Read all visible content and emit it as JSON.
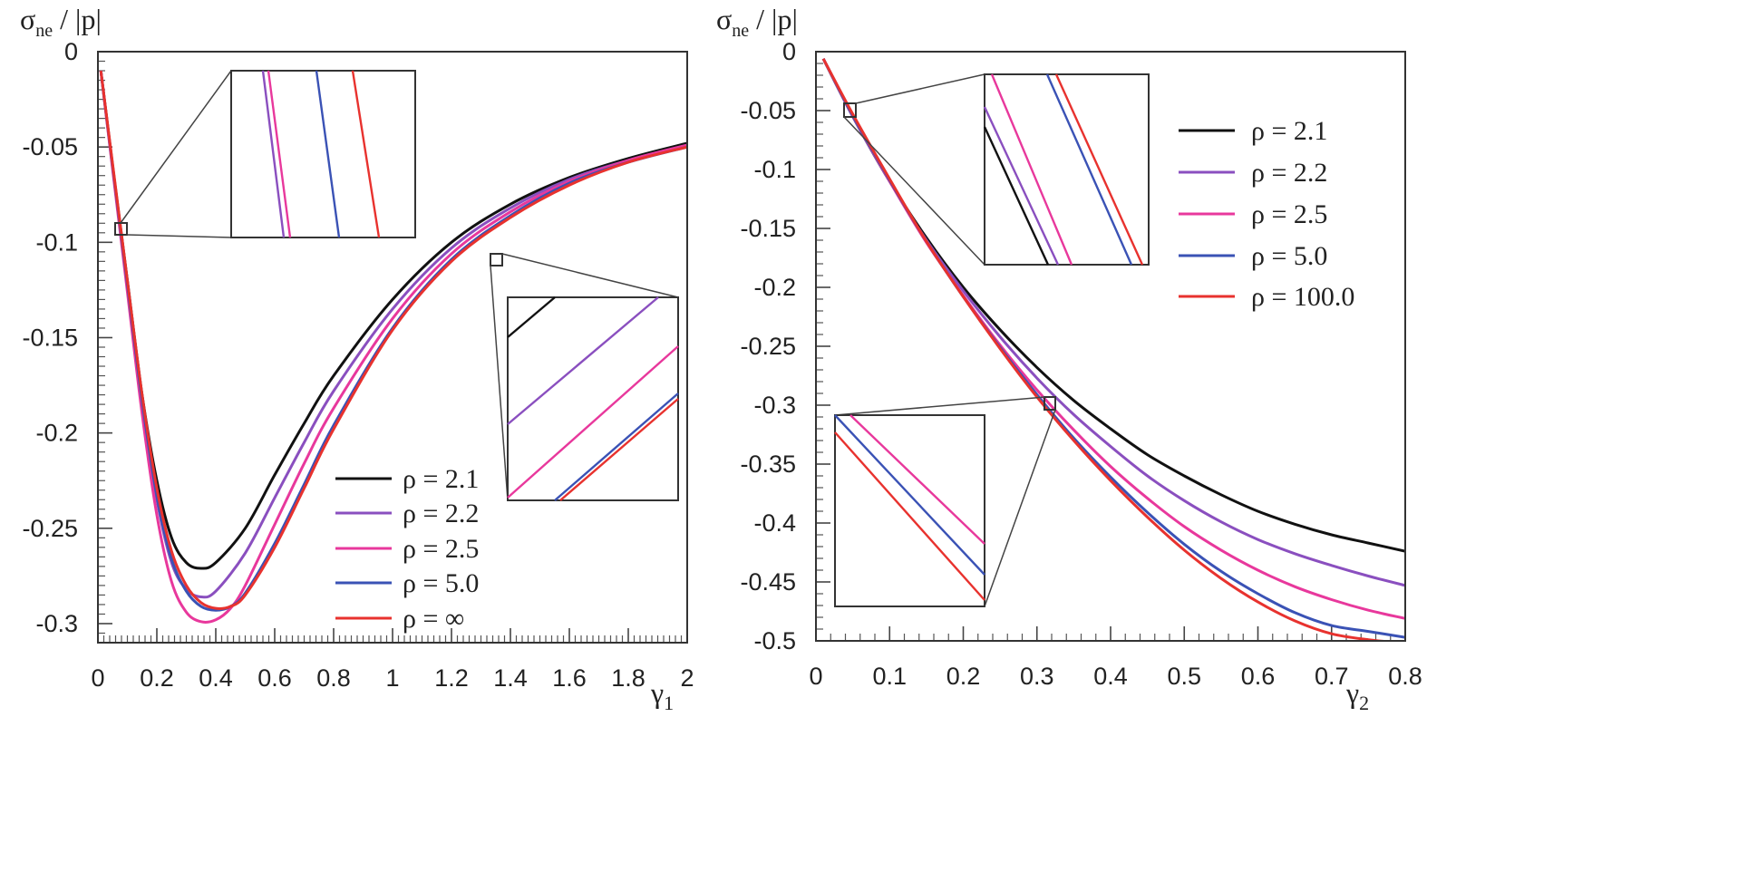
{
  "chart_data": [
    {
      "type": "line",
      "ylabel_main": "σ",
      "ylabel_sub": "ne",
      "ylabel_rest": " / |p|",
      "xlabel_main": "γ",
      "xlabel_sub": "1",
      "xlim": [
        0,
        2
      ],
      "ylim": [
        -0.31,
        0
      ],
      "x_ticks": [
        0,
        0.2,
        0.4,
        0.6,
        0.8,
        1,
        1.2,
        1.4,
        1.6,
        1.8,
        2
      ],
      "x_tick_labels": [
        "0",
        "0.2",
        "0.4",
        "0.6",
        "0.8",
        "1",
        "1.2",
        "1.4",
        "1.6",
        "1.8",
        "2"
      ],
      "y_ticks": [
        0,
        -0.05,
        -0.1,
        -0.15,
        -0.2,
        -0.25,
        -0.3
      ],
      "y_tick_labels": [
        "0",
        "-0.05",
        "-0.1",
        "-0.15",
        "-0.2",
        "-0.25",
        "-0.3"
      ],
      "legend": {
        "position": "lower-right",
        "entries": [
          {
            "label": "ρ = 2.1",
            "color": "#111111"
          },
          {
            "label": "ρ = 2.2",
            "color": "#8a4fbf"
          },
          {
            "label": "ρ = 2.5",
            "color": "#e8389c"
          },
          {
            "label": "ρ = 5.0",
            "color": "#3a52b5"
          },
          {
            "label": "ρ = ∞",
            "color": "#e8322e"
          }
        ]
      },
      "series": [
        {
          "name": "ρ = 2.1",
          "color": "#111111",
          "x": [
            0.01,
            0.05,
            0.1,
            0.15,
            0.2,
            0.25,
            0.3,
            0.35,
            0.4,
            0.5,
            0.6,
            0.7,
            0.8,
            1.0,
            1.2,
            1.4,
            1.6,
            1.8,
            2.0
          ],
          "y": [
            -0.01,
            -0.06,
            -0.12,
            -0.18,
            -0.225,
            -0.255,
            -0.268,
            -0.271,
            -0.268,
            -0.25,
            -0.222,
            -0.195,
            -0.17,
            -0.13,
            -0.1,
            -0.08,
            -0.066,
            -0.056,
            -0.048
          ]
        },
        {
          "name": "ρ = 2.2",
          "color": "#8a4fbf",
          "x": [
            0.01,
            0.05,
            0.1,
            0.15,
            0.2,
            0.25,
            0.3,
            0.35,
            0.4,
            0.5,
            0.6,
            0.7,
            0.8,
            1.0,
            1.2,
            1.4,
            1.6,
            1.8,
            2.0
          ],
          "y": [
            -0.01,
            -0.061,
            -0.123,
            -0.186,
            -0.235,
            -0.268,
            -0.282,
            -0.286,
            -0.283,
            -0.263,
            -0.234,
            -0.205,
            -0.178,
            -0.135,
            -0.103,
            -0.082,
            -0.067,
            -0.057,
            -0.049
          ]
        },
        {
          "name": "ρ = 2.5",
          "color": "#e8389c",
          "x": [
            0.01,
            0.05,
            0.1,
            0.15,
            0.2,
            0.25,
            0.3,
            0.35,
            0.4,
            0.45,
            0.5,
            0.6,
            0.7,
            0.8,
            1.0,
            1.2,
            1.4,
            1.6,
            1.8,
            2.0
          ],
          "y": [
            -0.01,
            -0.062,
            -0.126,
            -0.19,
            -0.243,
            -0.278,
            -0.294,
            -0.299,
            -0.298,
            -0.292,
            -0.28,
            -0.248,
            -0.216,
            -0.187,
            -0.14,
            -0.106,
            -0.084,
            -0.068,
            -0.057,
            -0.049
          ]
        },
        {
          "name": "ρ = 5.0",
          "color": "#3a52b5",
          "x": [
            0.01,
            0.05,
            0.1,
            0.15,
            0.2,
            0.25,
            0.3,
            0.35,
            0.4,
            0.45,
            0.5,
            0.6,
            0.7,
            0.8,
            1.0,
            1.2,
            1.4,
            1.6,
            1.8,
            2.0
          ],
          "y": [
            -0.01,
            -0.06,
            -0.122,
            -0.183,
            -0.233,
            -0.266,
            -0.283,
            -0.291,
            -0.293,
            -0.291,
            -0.284,
            -0.258,
            -0.227,
            -0.196,
            -0.145,
            -0.109,
            -0.086,
            -0.069,
            -0.058,
            -0.05
          ]
        },
        {
          "name": "ρ = ∞",
          "color": "#e8322e",
          "x": [
            0.01,
            0.05,
            0.1,
            0.15,
            0.2,
            0.25,
            0.3,
            0.35,
            0.4,
            0.45,
            0.5,
            0.6,
            0.7,
            0.8,
            1.0,
            1.2,
            1.4,
            1.6,
            1.8,
            2.0
          ],
          "y": [
            -0.01,
            -0.059,
            -0.12,
            -0.18,
            -0.229,
            -0.262,
            -0.28,
            -0.289,
            -0.292,
            -0.291,
            -0.285,
            -0.26,
            -0.229,
            -0.198,
            -0.146,
            -0.11,
            -0.087,
            -0.07,
            -0.058,
            -0.05
          ]
        }
      ],
      "insets": [
        {
          "type": "zoom",
          "source_x": [
            0.065,
            0.09
          ],
          "source_y": [
            -0.098,
            -0.088
          ],
          "contents": [
            "ρ = 2.2",
            "ρ = 2.5",
            "ρ = 5.0",
            "ρ = ∞"
          ]
        },
        {
          "type": "zoom",
          "source_x": [
            1.33,
            1.38
          ],
          "source_y": [
            -0.115,
            -0.105
          ],
          "contents": [
            "ρ = 2.1",
            "ρ = 2.2",
            "ρ = 2.5",
            "ρ = 5.0",
            "ρ = ∞"
          ]
        }
      ]
    },
    {
      "type": "line",
      "ylabel_main": "σ",
      "ylabel_sub": "ne",
      "ylabel_rest": " / |p|",
      "xlabel_main": "γ",
      "xlabel_sub": "2",
      "xlim": [
        0,
        0.8
      ],
      "ylim": [
        -0.5,
        0
      ],
      "x_ticks": [
        0,
        0.1,
        0.2,
        0.3,
        0.4,
        0.5,
        0.6,
        0.7,
        0.8
      ],
      "x_tick_labels": [
        "0",
        "0.1",
        "0.2",
        "0.3",
        "0.4",
        "0.5",
        "0.6",
        "0.7",
        "0.8"
      ],
      "y_ticks": [
        0,
        -0.05,
        -0.1,
        -0.15,
        -0.2,
        -0.25,
        -0.3,
        -0.35,
        -0.4,
        -0.45,
        -0.5
      ],
      "y_tick_labels": [
        "0",
        "-0.05",
        "-0.1",
        "-0.15",
        "-0.2",
        "-0.25",
        "-0.3",
        "-0.35",
        "-0.4",
        "-0.45",
        "-0.5"
      ],
      "legend": {
        "position": "upper-right",
        "entries": [
          {
            "label": "ρ = 2.1",
            "color": "#111111"
          },
          {
            "label": "ρ = 2.2",
            "color": "#8a4fbf"
          },
          {
            "label": "ρ = 2.5",
            "color": "#e8389c"
          },
          {
            "label": "ρ = 5.0",
            "color": "#3a52b5"
          },
          {
            "label": "ρ = 100.0",
            "color": "#e8322e"
          }
        ]
      },
      "series": [
        {
          "name": "ρ = 2.1",
          "color": "#111111",
          "x": [
            0.01,
            0.05,
            0.1,
            0.15,
            0.2,
            0.25,
            0.3,
            0.35,
            0.4,
            0.45,
            0.5,
            0.55,
            0.6,
            0.65,
            0.7,
            0.75,
            0.8
          ],
          "y": [
            -0.006,
            -0.055,
            -0.11,
            -0.158,
            -0.2,
            -0.236,
            -0.268,
            -0.296,
            -0.32,
            -0.342,
            -0.36,
            -0.376,
            -0.39,
            -0.401,
            -0.41,
            -0.417,
            -0.424
          ]
        },
        {
          "name": "ρ = 2.2",
          "color": "#8a4fbf",
          "x": [
            0.01,
            0.05,
            0.1,
            0.15,
            0.2,
            0.25,
            0.3,
            0.35,
            0.4,
            0.45,
            0.5,
            0.55,
            0.6,
            0.65,
            0.7,
            0.75,
            0.8
          ],
          "y": [
            -0.006,
            -0.055,
            -0.11,
            -0.16,
            -0.203,
            -0.242,
            -0.277,
            -0.308,
            -0.335,
            -0.36,
            -0.381,
            -0.399,
            -0.414,
            -0.426,
            -0.436,
            -0.445,
            -0.453
          ]
        },
        {
          "name": "ρ = 2.5",
          "color": "#e8389c",
          "x": [
            0.01,
            0.05,
            0.1,
            0.15,
            0.2,
            0.25,
            0.3,
            0.35,
            0.4,
            0.45,
            0.5,
            0.55,
            0.6,
            0.65,
            0.7,
            0.75,
            0.8
          ],
          "y": [
            -0.006,
            -0.054,
            -0.11,
            -0.162,
            -0.207,
            -0.249,
            -0.287,
            -0.321,
            -0.352,
            -0.379,
            -0.403,
            -0.423,
            -0.44,
            -0.454,
            -0.465,
            -0.474,
            -0.481
          ]
        },
        {
          "name": "ρ = 5.0",
          "color": "#3a52b5",
          "x": [
            0.01,
            0.05,
            0.1,
            0.15,
            0.2,
            0.25,
            0.3,
            0.35,
            0.4,
            0.45,
            0.5,
            0.55,
            0.6,
            0.65,
            0.7,
            0.75,
            0.8
          ],
          "y": [
            -0.006,
            -0.054,
            -0.109,
            -0.161,
            -0.208,
            -0.251,
            -0.291,
            -0.328,
            -0.361,
            -0.391,
            -0.418,
            -0.441,
            -0.46,
            -0.476,
            -0.487,
            -0.492,
            -0.497
          ]
        },
        {
          "name": "ρ = 100.0",
          "color": "#e8322e",
          "x": [
            0.01,
            0.05,
            0.1,
            0.15,
            0.2,
            0.25,
            0.3,
            0.35,
            0.4,
            0.45,
            0.5,
            0.55,
            0.6,
            0.65,
            0.7,
            0.75,
            0.8
          ],
          "y": [
            -0.006,
            -0.053,
            -0.108,
            -0.161,
            -0.208,
            -0.252,
            -0.293,
            -0.33,
            -0.364,
            -0.395,
            -0.423,
            -0.447,
            -0.467,
            -0.483,
            -0.494,
            -0.499,
            -0.502
          ]
        }
      ],
      "insets": [
        {
          "type": "zoom",
          "source_x": [
            0.04,
            0.055
          ],
          "source_y": [
            -0.055,
            -0.045
          ],
          "contents": [
            "ρ = 2.1",
            "ρ = 2.2",
            "ρ = 2.5",
            "ρ = 5.0",
            "ρ = 100.0"
          ]
        },
        {
          "type": "zoom",
          "source_x": [
            0.315,
            0.325
          ],
          "source_y": [
            -0.305,
            -0.295
          ],
          "contents": [
            "ρ = 2.5",
            "ρ = 5.0",
            "ρ = 100.0"
          ]
        }
      ]
    }
  ]
}
